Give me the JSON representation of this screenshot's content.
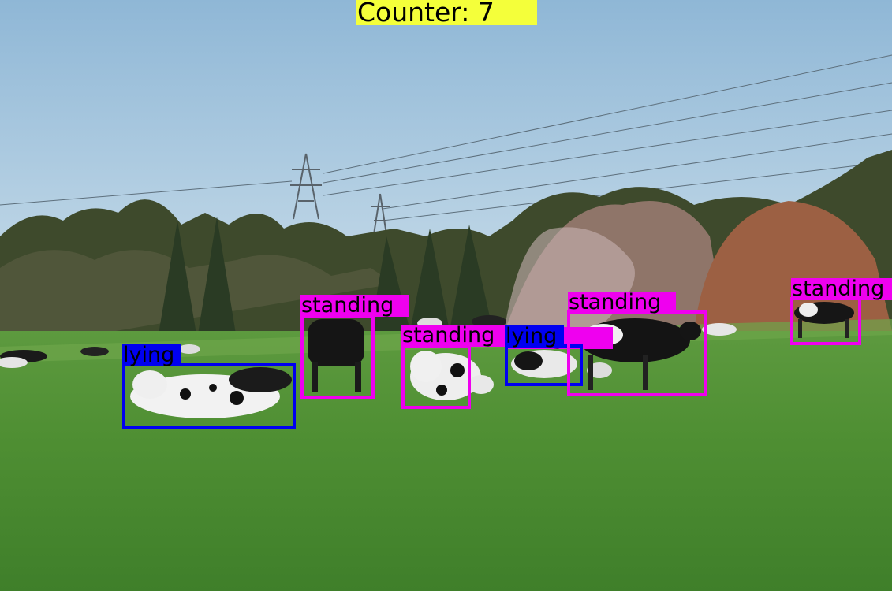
{
  "counter": {
    "text": "Counter: 7",
    "background": "#f4ff3a"
  },
  "class_colors": {
    "standing": "#ef00ef",
    "lying": "#0000f0"
  },
  "detections": [
    {
      "label": "lying"
    },
    {
      "label": "standing"
    },
    {
      "label": "standing"
    },
    {
      "label": "lying"
    },
    {
      "label": "standing"
    },
    {
      "label": "standing"
    },
    {
      "label": "standing"
    }
  ]
}
